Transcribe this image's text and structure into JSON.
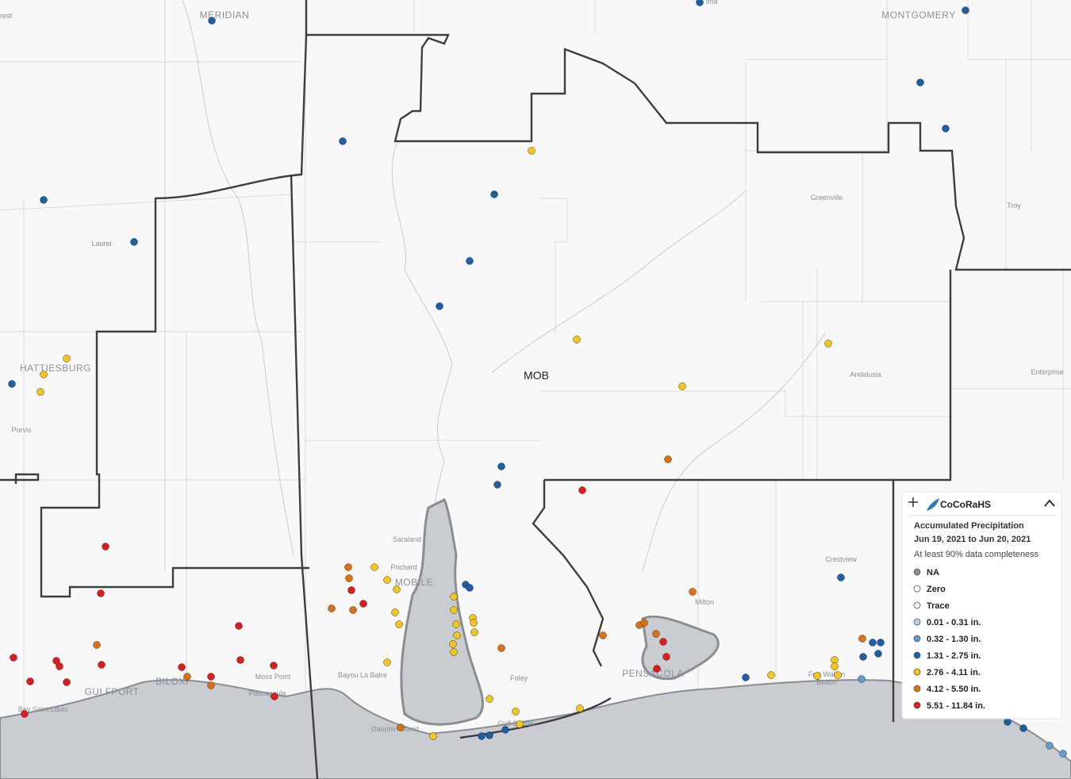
{
  "places": [
    "rest",
    "MERIDIAN",
    "lma",
    "MONTGOMERY",
    "Laurel",
    "Greenville",
    "Troy",
    "HATTIESBURG",
    "Purvis",
    "MOB",
    "Andalusia",
    "Enterprise",
    "Saraland",
    "Prichard",
    "MOBILE",
    "Crestview",
    "Milton",
    "Bayou La Batre",
    "Foley",
    "PENSACOLA",
    "Moss Point",
    "BILOXI",
    "GULFPORT",
    "Pascagoula",
    "Bay Saint Louis",
    "Dauphin Island",
    "Gulf Shores",
    "Fort Walton",
    "Beach"
  ],
  "legend": {
    "title": "CoCoRaHS",
    "heading": "Accumulated Precipitation",
    "dates": "Jun 19, 2021 to Jun 20, 2021",
    "note": "At least 90% data completeness",
    "items": [
      {
        "label": "NA",
        "color": "#8c8c8c"
      },
      {
        "label": "Zero",
        "color": "#ffffff"
      },
      {
        "label": "Trace",
        "color": "#f0f4f8"
      },
      {
        "label": "0.01 - 0.31 in.",
        "color": "#b5d3ea"
      },
      {
        "label": "0.32 - 1.30 in.",
        "color": "#5b9fcf"
      },
      {
        "label": "1.31 - 2.75 in.",
        "color": "#1a5fa8"
      },
      {
        "label": "2.76 - 4.11 in.",
        "color": "#f5c518"
      },
      {
        "label": "4.12 - 5.50 in.",
        "color": "#e0700f"
      },
      {
        "label": "5.51 - 11.84 in.",
        "color": "#e31a1c"
      }
    ]
  }
}
